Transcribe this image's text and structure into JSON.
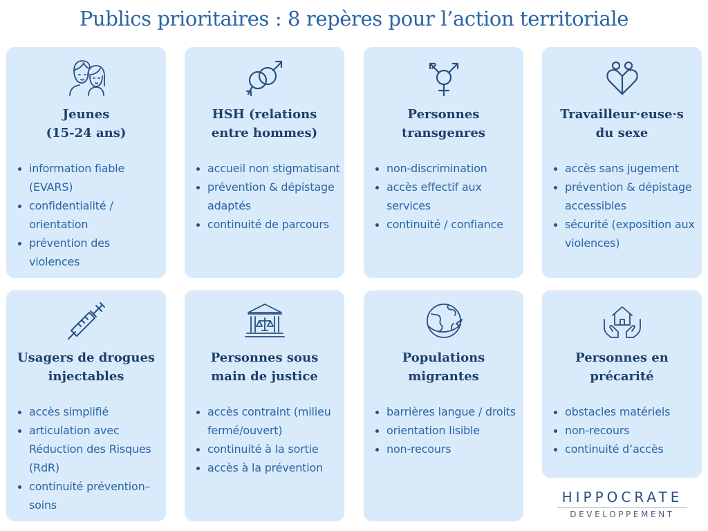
{
  "title": "Publics prioritaires : 8 repères pour l’action territoriale",
  "colors": {
    "card_bg": "#d9ebfb",
    "title": "#2a64a6",
    "heading": "#1f3f6b",
    "text": "#2a64a6"
  },
  "cards": [
    {
      "icon": "young-people-icon",
      "heading": [
        "Jeunes",
        "(15-24 ans)"
      ],
      "items": [
        "information fiable (EVARS)",
        "confidentialité / orientation",
        "prévention des violences"
      ]
    },
    {
      "icon": "male-symbols-icon",
      "heading": [
        "HSH (relations",
        "entre hommes)"
      ],
      "items": [
        "accueil non stigmatisant",
        "prévention & dépistage adaptés",
        "continuité de parcours"
      ]
    },
    {
      "icon": "transgender-symbol-icon",
      "heading": [
        "Personnes",
        "transgenres"
      ],
      "items": [
        "non-discrimination",
        "accès effectif aux services",
        "continuité / confiance"
      ]
    },
    {
      "icon": "heart-people-icon",
      "heading": [
        "Travailleur·euse·s",
        "du sexe"
      ],
      "items": [
        "accès sans jugement",
        "prévention & dépistage accessibles",
        "sécurité (exposition aux violences)"
      ]
    },
    {
      "icon": "syringe-icon",
      "heading": [
        "Usagers de drogues",
        "injectables"
      ],
      "items": [
        "accès simplifié",
        "articulation avec Réduction des Risques (RdR)",
        "continuité prévention–soins"
      ]
    },
    {
      "icon": "courthouse-icon",
      "heading": [
        "Personnes sous",
        "main de justice"
      ],
      "items": [
        "accès contraint (milieu fermé/ouvert)",
        "continuité à la sortie",
        "accès à la prévention"
      ]
    },
    {
      "icon": "globe-plane-icon",
      "heading": [
        "Populations",
        "migrantes"
      ],
      "items": [
        "barrières langue / droits",
        "orientation lisible",
        "non-recours"
      ]
    },
    {
      "icon": "house-hands-icon",
      "heading": [
        "Personnes en",
        "précarité"
      ],
      "items": [
        "obstacles matériels",
        "non-recours",
        "continuité d’accès"
      ]
    }
  ],
  "brand": {
    "name": "HIPPOCRATE",
    "sub": "DEVELOPPEMENT"
  }
}
